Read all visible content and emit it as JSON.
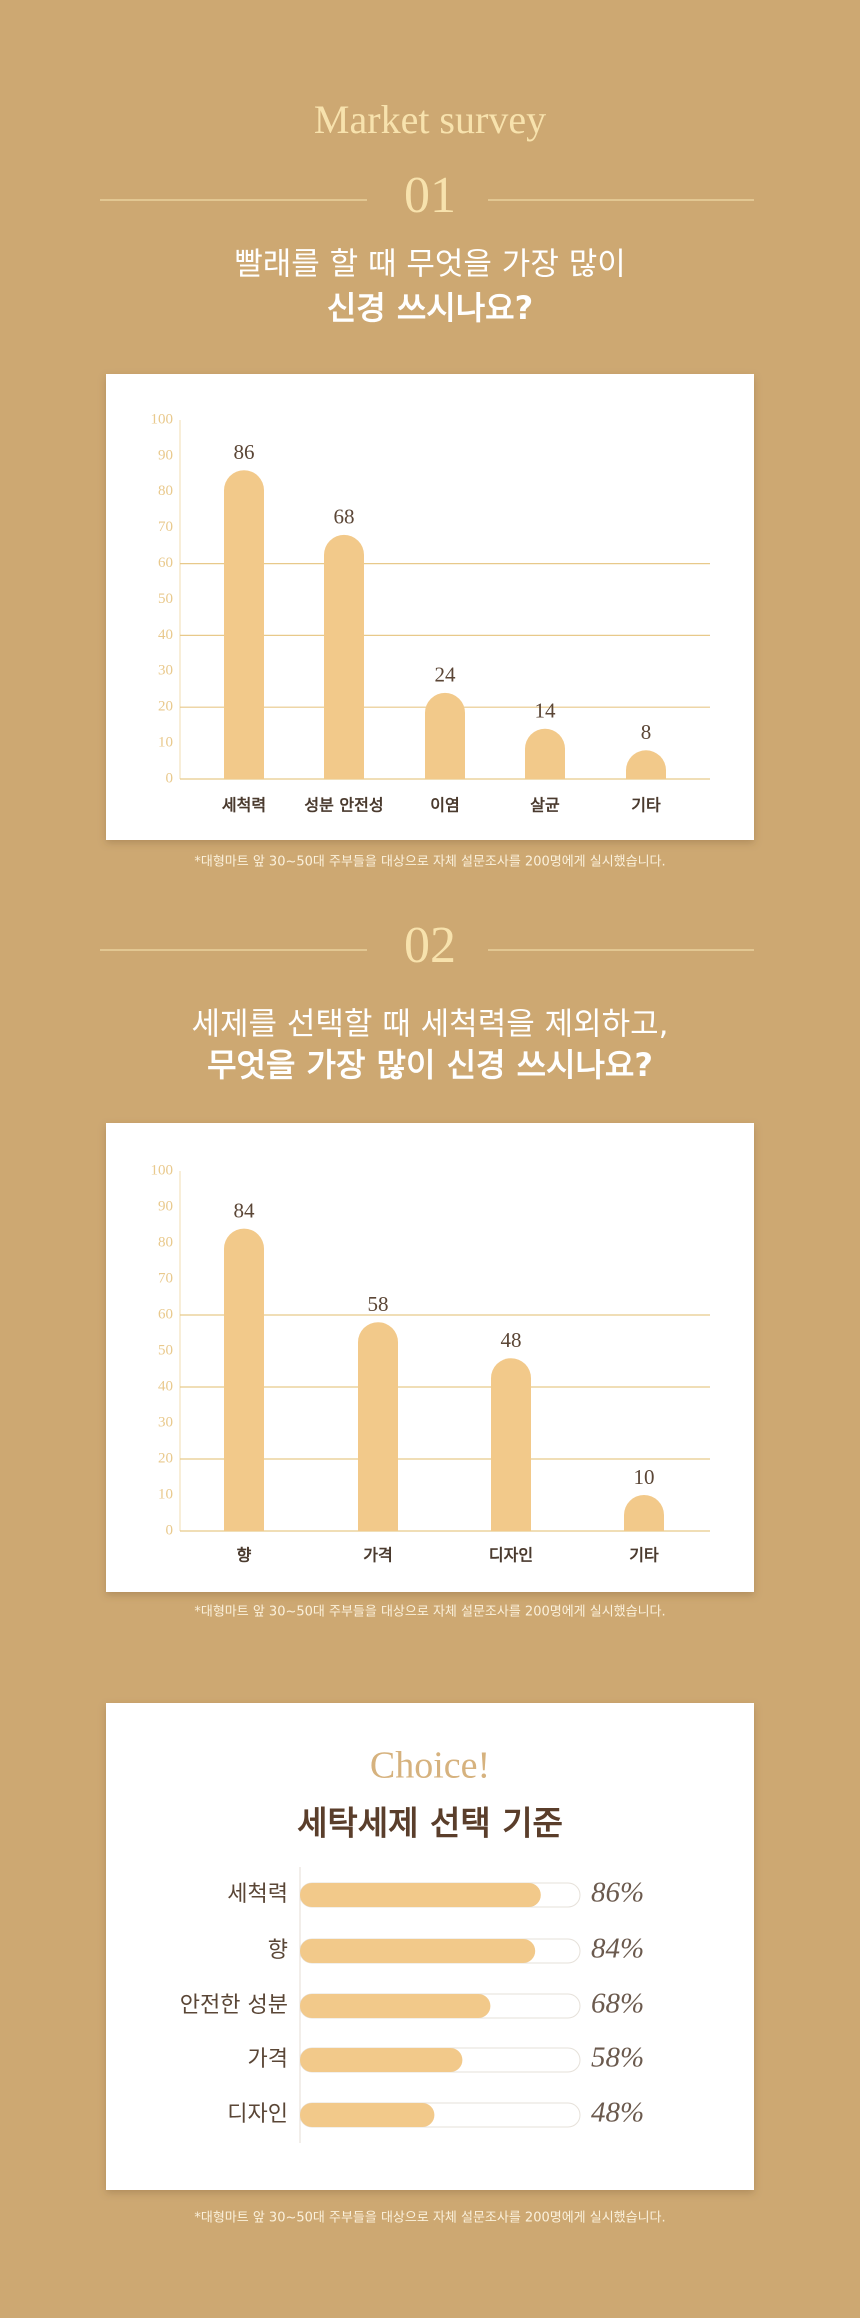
{
  "header": {
    "title": "Market survey"
  },
  "chart_data": [
    {
      "type": "bar",
      "number": "01",
      "title_lines": [
        "빨래를 할 때 무엇을 가장 많이",
        "신경 쓰시나요?"
      ],
      "categories": [
        "세척력",
        "성분 안전성",
        "이염",
        "살균",
        "기타"
      ],
      "values": [
        86,
        68,
        24,
        14,
        8
      ],
      "color": "#f2c98a",
      "ylim": [
        0,
        100
      ],
      "yticks": [
        0,
        10,
        20,
        30,
        40,
        50,
        60,
        70,
        80,
        90,
        100
      ],
      "grid_at": [
        20,
        40,
        60
      ],
      "note": "*대형마트 앞 30~50대 주부들을 대상으로 자체 설문조사를 200명에게 실시했습니다."
    },
    {
      "type": "bar",
      "number": "02",
      "title_lines": [
        "세제를 선택할 때 세척력을 제외하고,",
        "무엇을 가장 많이 신경 쓰시나요?"
      ],
      "categories": [
        "향",
        "가격",
        "디자인",
        "기타"
      ],
      "values": [
        84,
        58,
        48,
        10
      ],
      "color": "#f2c98a",
      "ylim": [
        0,
        100
      ],
      "yticks": [
        0,
        10,
        20,
        30,
        40,
        50,
        60,
        70,
        80,
        90,
        100
      ],
      "grid_at": [
        20,
        40,
        60
      ],
      "note": "*대형마트 앞 30~50대 주부들을 대상으로 자체 설문조사를 200명에게 실시했습니다."
    },
    {
      "type": "hbar",
      "subtitle": "Choice!",
      "title": "세탁세제 선택 기준",
      "categories": [
        "세척력",
        "향",
        "안전한 성분",
        "가격",
        "디자인"
      ],
      "values": [
        86,
        84,
        68,
        58,
        48
      ],
      "value_labels": [
        "86%",
        "84%",
        "68%",
        "58%",
        "48%"
      ],
      "color": "#f2c98a",
      "xlim": [
        0,
        100
      ],
      "note": "*대형마트 앞 30~50대 주부들을 대상으로 자체 설문조사를 200명에게 실시했습니다."
    }
  ]
}
